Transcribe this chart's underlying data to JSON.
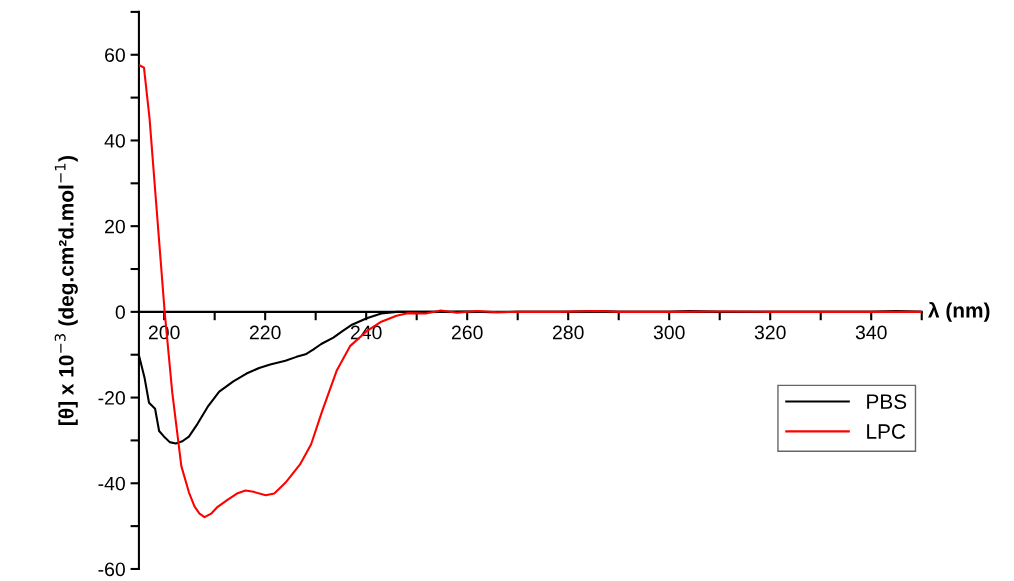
{
  "chart_data": {
    "type": "line",
    "xlabel": "λ (nm)",
    "ylabel": "[θ] x 10$^{−3}$ (deg.cm²d.mol$^{−1}$)",
    "xlim": [
      195,
      350
    ],
    "xticks": [
      200,
      {
        "value": 210,
        "label": null
      },
      220,
      {
        "value": 230,
        "label": null
      },
      240,
      {
        "value": 250,
        "label": null
      },
      260,
      {
        "value": 270,
        "label": null
      },
      280,
      {
        "value": 290,
        "label": null
      },
      300,
      {
        "value": 310,
        "label": null
      },
      320,
      {
        "value": 330,
        "label": null
      },
      340,
      {
        "value": 350,
        "label": null
      }
    ],
    "ylim": [
      -60,
      70
    ],
    "yticks": [
      -60,
      {
        "value": -50,
        "label": null
      },
      -40,
      {
        "value": -30,
        "label": null
      },
      -20,
      {
        "value": -10,
        "label": null
      },
      0,
      {
        "value": 10,
        "label": null
      },
      20,
      {
        "value": 30,
        "label": null
      },
      40,
      {
        "value": 50,
        "label": null
      },
      60,
      {
        "value": 70,
        "label": null
      }
    ],
    "grid": false,
    "legend": "lower right",
    "series": [
      {
        "name": "PBS",
        "color": "#000000",
        "x": [
          195,
          196.1,
          197,
          198.2,
          199,
          199.9,
          201.1,
          202.3,
          203.6,
          204.9,
          206.4,
          208.6,
          210.9,
          213.7,
          216.3,
          218.8,
          221,
          224,
          226.2,
          228,
          229.5,
          231.1,
          233.5,
          235.3,
          237.2,
          240.1,
          243,
          246,
          250,
          255,
          260,
          265,
          270,
          280,
          286,
          290,
          300,
          304,
          310,
          320,
          330,
          340,
          345,
          350
        ],
        "values": [
          -10.1,
          -15.3,
          -21.2,
          -22.6,
          -27.8,
          -29,
          -30.4,
          -30.7,
          -30.2,
          -29.1,
          -26.5,
          -22.2,
          -18.6,
          -16.2,
          -14.4,
          -13.1,
          -12.3,
          -11.4,
          -10.5,
          -9.9,
          -8.8,
          -7.5,
          -6,
          -4.5,
          -3,
          -1.5,
          -0.4,
          0,
          0,
          0,
          0.1,
          -0.1,
          0,
          0,
          0.2,
          0,
          0,
          0.2,
          0,
          0,
          0,
          0,
          0.2,
          0
        ]
      },
      {
        "name": "LPC",
        "color": "#ff0000",
        "x": [
          195.2,
          196,
          197.1,
          198.3,
          200.1,
          201.6,
          203.4,
          204.9,
          206,
          207,
          208,
          209.3,
          210.4,
          212.6,
          214.4,
          216.1,
          217.7,
          220.1,
          221.8,
          224,
          226.9,
          229.1,
          231.3,
          234.2,
          236.8,
          240.1,
          243,
          246,
          248.2,
          251.8,
          254.8,
          258,
          262,
          266,
          270,
          278,
          286,
          290,
          300,
          310,
          320,
          330,
          340,
          350
        ],
        "values": [
          57.5,
          57,
          45.2,
          27.1,
          0,
          -18.8,
          -36,
          -42.1,
          -45.4,
          -47.1,
          -47.9,
          -47.1,
          -45.7,
          -43.8,
          -42.4,
          -41.7,
          -42,
          -42.8,
          -42.4,
          -39.9,
          -35.6,
          -30.9,
          -23.1,
          -13.6,
          -8,
          -4.5,
          -2.3,
          -0.9,
          -0.3,
          -0.4,
          0.3,
          -0.2,
          0.2,
          -0.1,
          0,
          0,
          0.2,
          0,
          0,
          0.1,
          0,
          0,
          0,
          0
        ]
      }
    ]
  }
}
